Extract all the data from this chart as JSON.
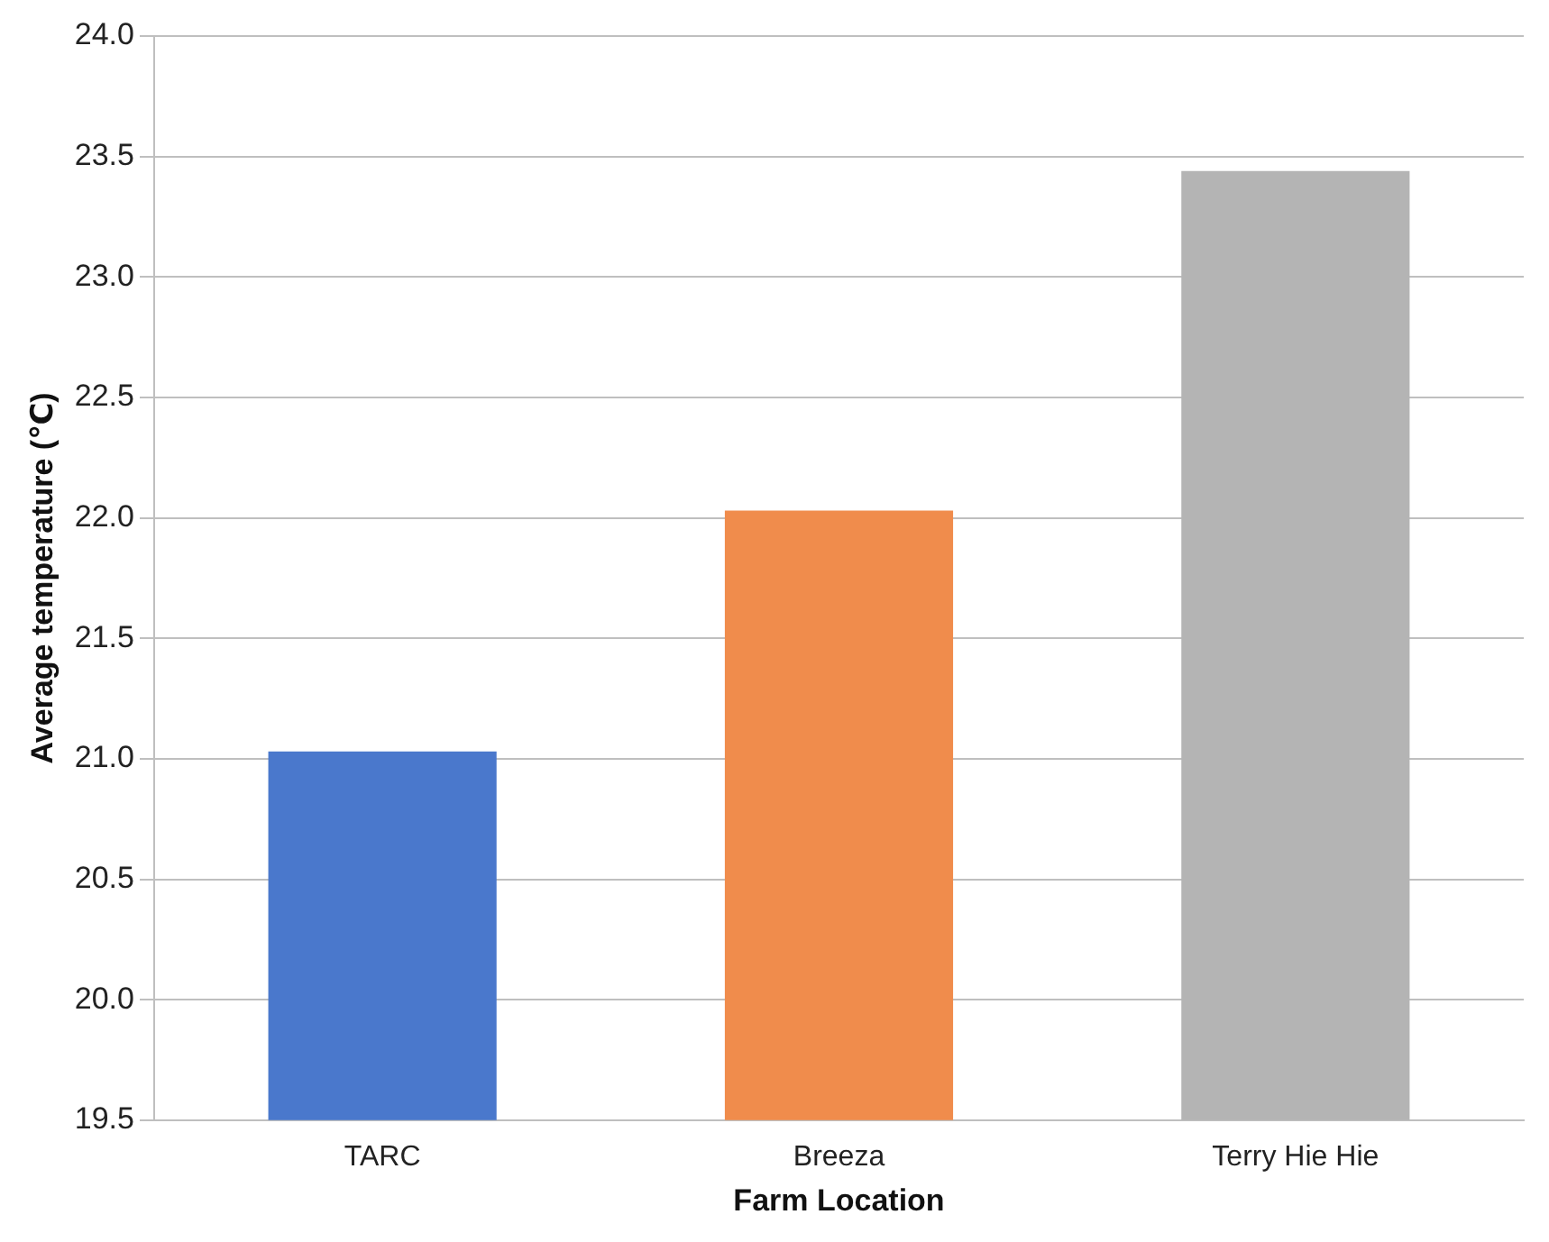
{
  "chart_data": {
    "type": "bar",
    "xlabel": "Farm Location",
    "ylabel": "Average temperature (℃)",
    "categories": [
      "TARC",
      "Breeza",
      "Terry Hie Hie"
    ],
    "values": [
      21.03,
      22.03,
      23.44
    ],
    "colors": [
      "#4a78cc",
      "#f08c4c",
      "#b4b4b4"
    ],
    "ylim": [
      19.5,
      24.0
    ],
    "yticks": [
      {
        "value": 19.5,
        "label": "19.5"
      },
      {
        "value": 20,
        "label": "20.0"
      },
      {
        "value": 20.5,
        "label": "20.5"
      },
      {
        "value": 21,
        "label": "21.0"
      },
      {
        "value": 21.5,
        "label": "21.5"
      },
      {
        "value": 22,
        "label": "22.0"
      },
      {
        "value": 22.5,
        "label": "22.5"
      },
      {
        "value": 23,
        "label": "23.0"
      },
      {
        "value": 23.5,
        "label": "23.5"
      },
      {
        "value": 24,
        "label": "24.0"
      }
    ],
    "grid": "y",
    "legend": false
  }
}
